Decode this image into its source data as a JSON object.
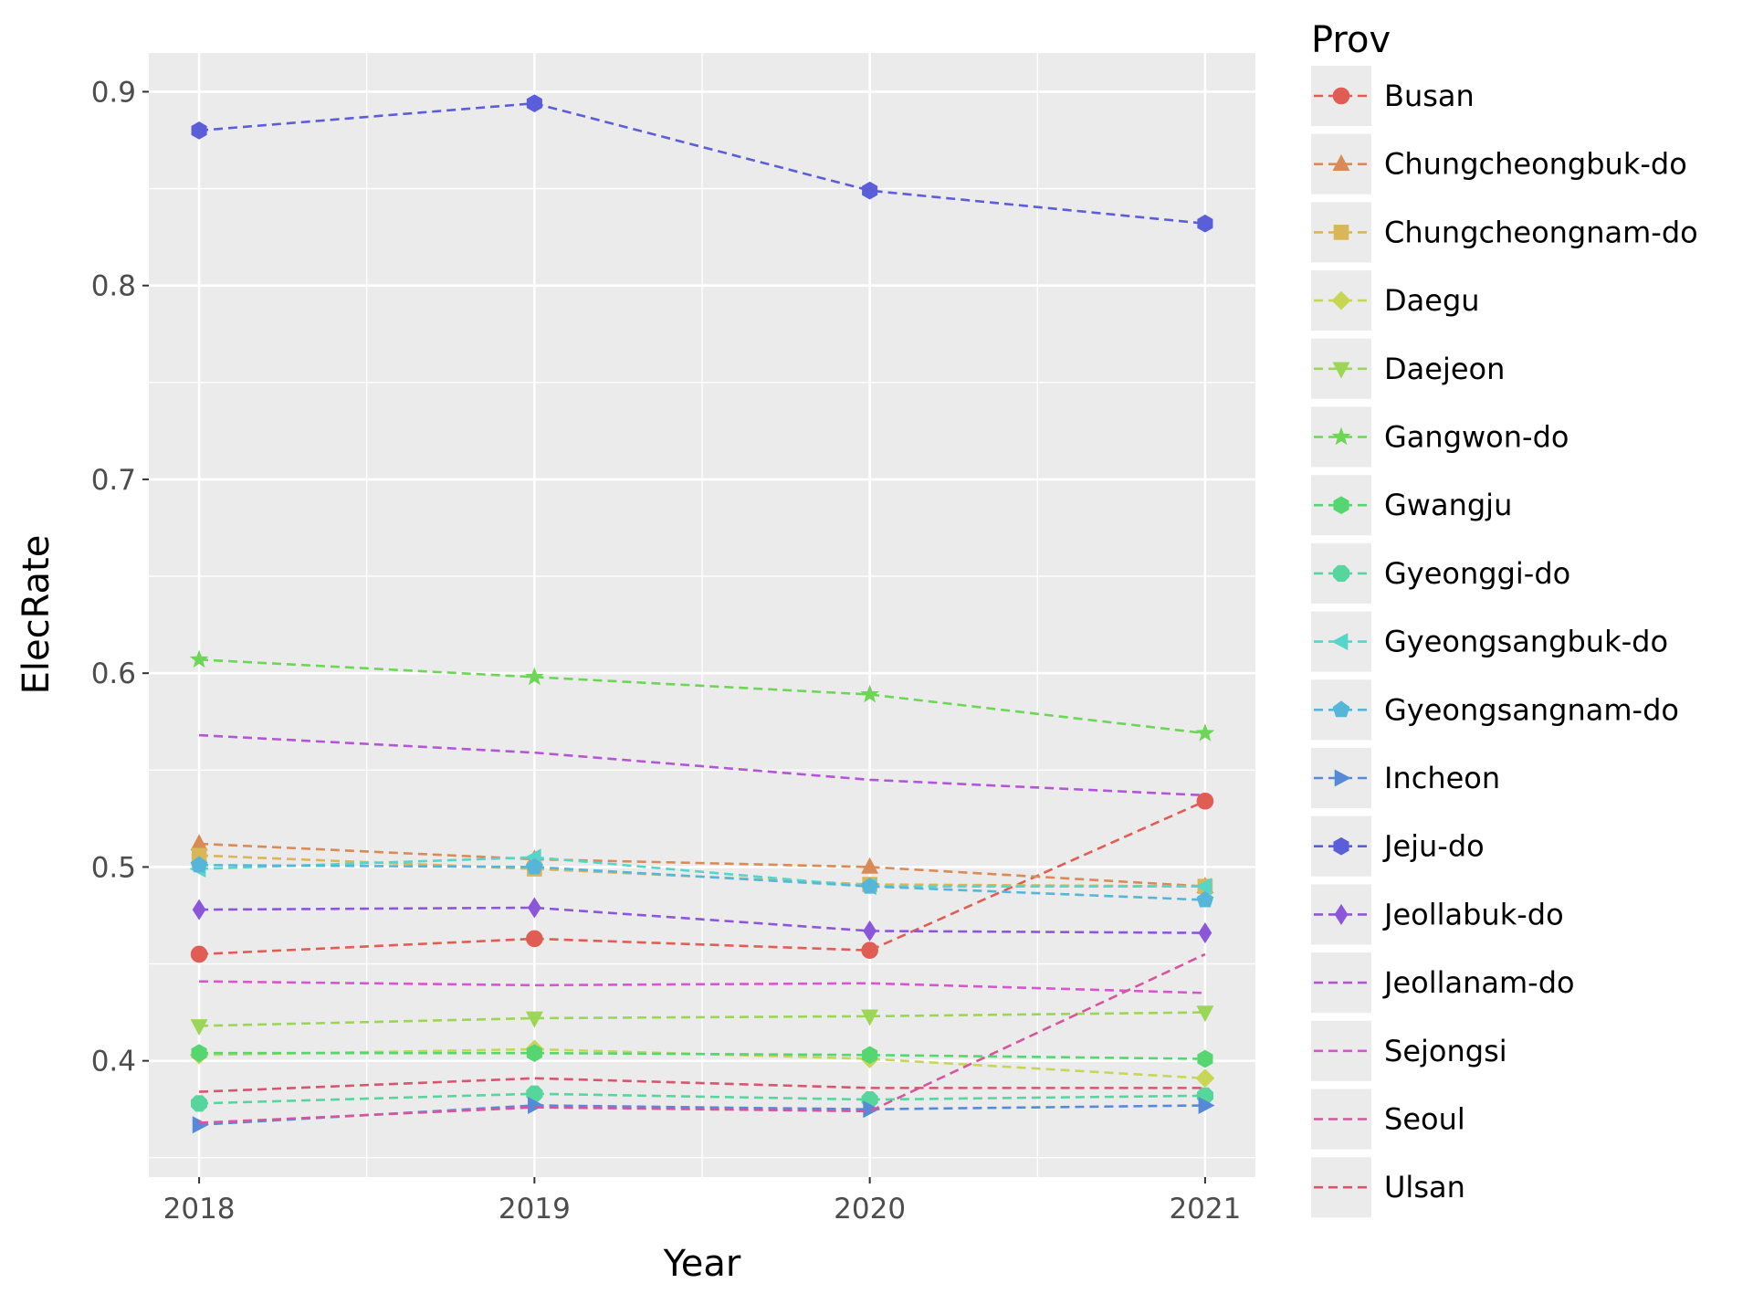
{
  "chart_data": {
    "type": "line",
    "xlabel": "Year",
    "ylabel": "ElecRate",
    "x": [
      2018,
      2019,
      2020,
      2021
    ],
    "x_tick_labels": [
      "2018",
      "2019",
      "2020",
      "2021"
    ],
    "xlim": [
      2017.85,
      2021.15
    ],
    "ylim": [
      0.34,
      0.92
    ],
    "y_ticks": [
      0.4,
      0.5,
      0.6,
      0.7,
      0.8,
      0.9
    ],
    "y_tick_labels": [
      "0.4",
      "0.5",
      "0.6",
      "0.7",
      "0.8",
      "0.9"
    ],
    "grid": true,
    "legend": {
      "title": "Prov",
      "position": "right"
    },
    "series": [
      {
        "name": "Busan",
        "color": "#e05d54",
        "marker": "circle",
        "values": [
          0.455,
          0.463,
          0.457,
          0.534
        ]
      },
      {
        "name": "Chungcheongbuk-do",
        "color": "#d98a56",
        "marker": "triangle-up",
        "values": [
          0.512,
          0.504,
          0.5,
          0.49
        ]
      },
      {
        "name": "Chungcheongnam-do",
        "color": "#d9b656",
        "marker": "square",
        "values": [
          0.506,
          0.499,
          0.491,
          0.49
        ]
      },
      {
        "name": "Daegu",
        "color": "#c8d656",
        "marker": "diamond",
        "values": [
          0.403,
          0.406,
          0.401,
          0.391
        ]
      },
      {
        "name": "Daejeon",
        "color": "#9bd656",
        "marker": "triangle-down",
        "values": [
          0.418,
          0.422,
          0.423,
          0.425
        ]
      },
      {
        "name": "Gangwon-do",
        "color": "#6dd656",
        "marker": "star",
        "values": [
          0.607,
          0.598,
          0.589,
          0.569
        ]
      },
      {
        "name": "Gwangju",
        "color": "#56d670",
        "marker": "hexagon",
        "values": [
          0.404,
          0.404,
          0.403,
          0.401
        ]
      },
      {
        "name": "Gyeonggi-do",
        "color": "#56d69d",
        "marker": "octagon",
        "values": [
          0.378,
          0.383,
          0.38,
          0.382
        ]
      },
      {
        "name": "Gyeongsangbuk-do",
        "color": "#56d6c8",
        "marker": "triangle-left",
        "values": [
          0.499,
          0.505,
          0.49,
          0.49
        ]
      },
      {
        "name": "Gyeongsangnam-do",
        "color": "#56b6d9",
        "marker": "pentagon",
        "values": [
          0.501,
          0.5,
          0.49,
          0.483
        ]
      },
      {
        "name": "Incheon",
        "color": "#568ad9",
        "marker": "triangle-right",
        "values": [
          0.367,
          0.377,
          0.375,
          0.377
        ]
      },
      {
        "name": "Jeju-do",
        "color": "#5a5ed9",
        "marker": "hexagon",
        "values": [
          0.88,
          0.894,
          0.849,
          0.832
        ]
      },
      {
        "name": "Jeollabuk-do",
        "color": "#8c56d9",
        "marker": "thin-diamond",
        "values": [
          0.478,
          0.479,
          0.467,
          0.466
        ]
      },
      {
        "name": "Jeollanam-do",
        "color": "#b356d6",
        "marker": "none",
        "values": [
          0.568,
          0.559,
          0.545,
          0.537
        ]
      },
      {
        "name": "Sejongsi",
        "color": "#d656d0",
        "marker": "none",
        "values": [
          0.441,
          0.439,
          0.44,
          0.435
        ]
      },
      {
        "name": "Seoul",
        "color": "#d6569d",
        "marker": "none",
        "values": [
          0.368,
          0.376,
          0.374,
          0.455
        ]
      },
      {
        "name": "Ulsan",
        "color": "#d6566d",
        "marker": "none",
        "values": [
          0.384,
          0.391,
          0.386,
          0.386
        ]
      }
    ]
  }
}
